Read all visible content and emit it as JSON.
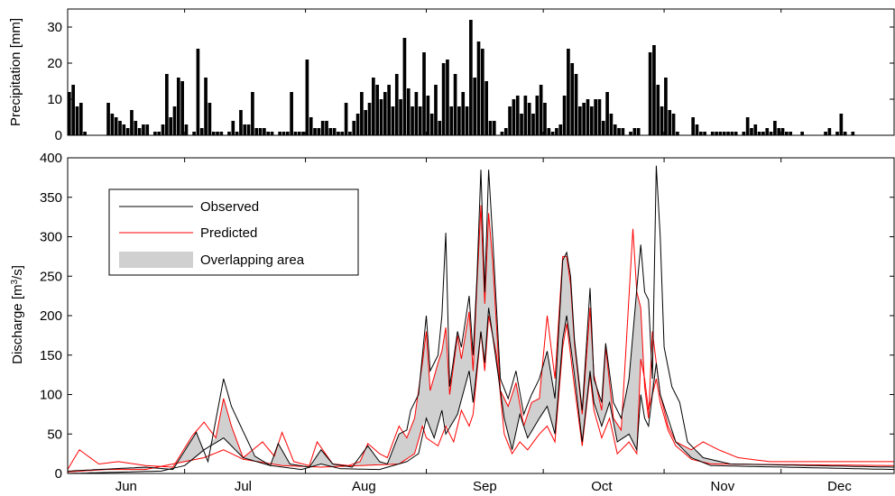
{
  "chart_data": [
    {
      "type": "bar",
      "ylabel": "Precipitation [mm]",
      "ylim": [
        0,
        35
      ],
      "yticks": [
        0,
        10,
        20,
        30
      ],
      "x_start_day": 0,
      "series": [
        {
          "name": "Precipitation",
          "values": [
            12,
            14,
            8,
            9,
            1,
            0,
            0,
            0,
            0,
            0,
            9,
            6,
            5,
            4,
            3,
            2,
            7,
            4,
            2,
            3,
            3,
            0,
            1,
            1,
            3,
            17,
            5,
            8,
            16,
            15,
            3,
            0,
            1,
            24,
            2,
            16,
            9,
            1,
            1,
            1,
            0,
            1,
            4,
            1,
            7,
            3,
            3,
            12,
            2,
            2,
            2,
            1,
            1,
            0,
            1,
            1,
            1,
            12,
            1,
            1,
            1,
            21,
            5,
            2,
            2,
            4,
            4,
            2,
            2,
            1,
            1,
            9,
            1,
            4,
            6,
            12,
            7,
            9,
            16,
            14,
            10,
            12,
            14,
            8,
            17,
            10,
            27,
            13,
            8,
            12,
            8,
            23,
            11,
            6,
            14,
            4,
            20,
            21,
            8,
            17,
            8,
            12,
            8,
            32,
            16,
            26,
            24,
            15,
            4,
            4,
            0,
            1,
            2,
            8,
            10,
            11,
            6,
            11,
            9,
            6,
            11,
            14,
            9,
            2,
            1,
            2,
            3,
            11,
            24,
            20,
            17,
            8,
            9,
            10,
            8,
            10,
            10,
            4,
            12,
            6,
            3,
            2,
            2,
            0,
            1,
            2,
            2,
            0,
            0,
            23,
            25,
            14,
            8,
            16,
            7,
            6,
            1,
            0,
            0,
            0,
            5,
            3,
            1,
            1,
            0,
            1,
            1,
            1,
            1,
            1,
            1,
            1,
            0,
            1,
            5,
            2,
            3,
            1,
            1,
            2,
            1,
            4,
            2,
            2,
            1,
            1,
            0,
            0,
            1,
            0,
            0,
            0,
            0,
            0,
            1,
            2,
            0,
            1,
            6,
            1,
            0,
            1,
            0,
            0,
            0,
            0,
            0,
            0
          ]
        }
      ]
    },
    {
      "type": "line",
      "ylabel": "Discharge [m³/s]",
      "ylim": [
        0,
        400
      ],
      "yticks": [
        0,
        50,
        100,
        150,
        200,
        250,
        300,
        350,
        400
      ],
      "xlim": [
        0,
        212
      ],
      "xtick_labels": [
        "Jun",
        "Jul",
        "Aug",
        "Sep",
        "Oct",
        "Nov",
        "Dec"
      ],
      "xtick_label_days": [
        15,
        45,
        76,
        107,
        137,
        168,
        198
      ],
      "xtick_mark_days": [
        0,
        30,
        61,
        92,
        122,
        153,
        183
      ],
      "legend_position": "top-left",
      "observed_upper": [
        [
          0,
          3
        ],
        [
          20,
          8
        ],
        [
          27,
          5
        ],
        [
          33,
          52
        ],
        [
          36,
          15
        ],
        [
          40,
          120
        ],
        [
          42,
          85
        ],
        [
          48,
          22
        ],
        [
          52,
          10
        ],
        [
          54,
          38
        ],
        [
          57,
          12
        ],
        [
          62,
          8
        ],
        [
          65,
          30
        ],
        [
          68,
          12
        ],
        [
          73,
          8
        ],
        [
          77,
          35
        ],
        [
          80,
          15
        ],
        [
          82,
          12
        ],
        [
          85,
          50
        ],
        [
          87,
          55
        ],
        [
          88,
          80
        ],
        [
          90,
          100
        ],
        [
          92,
          200
        ],
        [
          93,
          130
        ],
        [
          95,
          150
        ],
        [
          96,
          200
        ],
        [
          97,
          305
        ],
        [
          98,
          110
        ],
        [
          100,
          180
        ],
        [
          101,
          160
        ],
        [
          103,
          225
        ],
        [
          104,
          150
        ],
        [
          105,
          250
        ],
        [
          106,
          385
        ],
        [
          107,
          230
        ],
        [
          108,
          385
        ],
        [
          109,
          300
        ],
        [
          111,
          120
        ],
        [
          113,
          95
        ],
        [
          115,
          130
        ],
        [
          117,
          75
        ],
        [
          119,
          100
        ],
        [
          121,
          120
        ],
        [
          123,
          155
        ],
        [
          125,
          95
        ],
        [
          127,
          270
        ],
        [
          128,
          280
        ],
        [
          129,
          250
        ],
        [
          130,
          170
        ],
        [
          132,
          80
        ],
        [
          134,
          235
        ],
        [
          135,
          120
        ],
        [
          137,
          90
        ],
        [
          138,
          165
        ],
        [
          140,
          90
        ],
        [
          142,
          70
        ],
        [
          144,
          120
        ],
        [
          147,
          290
        ],
        [
          148,
          230
        ],
        [
          149,
          220
        ],
        [
          150,
          120
        ],
        [
          151,
          390
        ],
        [
          152,
          300
        ],
        [
          153,
          160
        ],
        [
          155,
          110
        ],
        [
          157,
          90
        ],
        [
          159,
          40
        ],
        [
          163,
          20
        ],
        [
          170,
          12
        ],
        [
          212,
          8
        ]
      ],
      "observed_lower": [
        [
          0,
          0
        ],
        [
          24,
          3
        ],
        [
          30,
          10
        ],
        [
          35,
          30
        ],
        [
          40,
          45
        ],
        [
          45,
          20
        ],
        [
          52,
          10
        ],
        [
          60,
          5
        ],
        [
          65,
          12
        ],
        [
          70,
          6
        ],
        [
          80,
          5
        ],
        [
          87,
          15
        ],
        [
          90,
          25
        ],
        [
          92,
          70
        ],
        [
          94,
          45
        ],
        [
          96,
          80
        ],
        [
          97,
          50
        ],
        [
          100,
          75
        ],
        [
          103,
          130
        ],
        [
          104,
          90
        ],
        [
          106,
          180
        ],
        [
          107,
          140
        ],
        [
          108,
          210
        ],
        [
          110,
          140
        ],
        [
          112,
          70
        ],
        [
          114,
          30
        ],
        [
          116,
          75
        ],
        [
          118,
          45
        ],
        [
          121,
          70
        ],
        [
          123,
          85
        ],
        [
          125,
          50
        ],
        [
          127,
          170
        ],
        [
          128,
          200
        ],
        [
          130,
          125
        ],
        [
          132,
          40
        ],
        [
          134,
          130
        ],
        [
          135,
          90
        ],
        [
          137,
          60
        ],
        [
          139,
          90
        ],
        [
          141,
          40
        ],
        [
          144,
          50
        ],
        [
          146,
          30
        ],
        [
          147,
          100
        ],
        [
          148,
          70
        ],
        [
          149,
          60
        ],
        [
          151,
          140
        ],
        [
          152,
          100
        ],
        [
          154,
          70
        ],
        [
          156,
          40
        ],
        [
          160,
          20
        ],
        [
          165,
          10
        ],
        [
          212,
          5
        ]
      ],
      "predicted_upper": [
        [
          0,
          5
        ],
        [
          3,
          30
        ],
        [
          8,
          12
        ],
        [
          13,
          15
        ],
        [
          20,
          10
        ],
        [
          27,
          8
        ],
        [
          32,
          48
        ],
        [
          35,
          65
        ],
        [
          38,
          45
        ],
        [
          40,
          95
        ],
        [
          42,
          60
        ],
        [
          45,
          20
        ],
        [
          50,
          40
        ],
        [
          53,
          22
        ],
        [
          55,
          52
        ],
        [
          58,
          15
        ],
        [
          62,
          10
        ],
        [
          64,
          40
        ],
        [
          68,
          12
        ],
        [
          72,
          10
        ],
        [
          75,
          15
        ],
        [
          77,
          38
        ],
        [
          80,
          25
        ],
        [
          82,
          20
        ],
        [
          85,
          60
        ],
        [
          87,
          45
        ],
        [
          89,
          70
        ],
        [
          91,
          140
        ],
        [
          92,
          180
        ],
        [
          93,
          105
        ],
        [
          95,
          140
        ],
        [
          96,
          155
        ],
        [
          97,
          185
        ],
        [
          98,
          100
        ],
        [
          100,
          175
        ],
        [
          101,
          145
        ],
        [
          103,
          205
        ],
        [
          104,
          130
        ],
        [
          105,
          240
        ],
        [
          106,
          340
        ],
        [
          107,
          215
        ],
        [
          108,
          330
        ],
        [
          109,
          270
        ],
        [
          111,
          105
        ],
        [
          113,
          85
        ],
        [
          115,
          115
        ],
        [
          117,
          60
        ],
        [
          119,
          90
        ],
        [
          121,
          95
        ],
        [
          123,
          200
        ],
        [
          125,
          120
        ],
        [
          127,
          275
        ],
        [
          128,
          275
        ],
        [
          129,
          240
        ],
        [
          130,
          165
        ],
        [
          132,
          75
        ],
        [
          134,
          210
        ],
        [
          135,
          125
        ],
        [
          137,
          80
        ],
        [
          138,
          160
        ],
        [
          140,
          70
        ],
        [
          142,
          55
        ],
        [
          145,
          310
        ],
        [
          146,
          230
        ],
        [
          147,
          210
        ],
        [
          148,
          110
        ],
        [
          149,
          70
        ],
        [
          150,
          180
        ],
        [
          152,
          100
        ],
        [
          154,
          60
        ],
        [
          156,
          40
        ],
        [
          160,
          30
        ],
        [
          163,
          40
        ],
        [
          167,
          30
        ],
        [
          172,
          20
        ],
        [
          180,
          15
        ],
        [
          212,
          15
        ]
      ],
      "predicted_lower": [
        [
          0,
          2
        ],
        [
          10,
          5
        ],
        [
          20,
          5
        ],
        [
          30,
          15
        ],
        [
          35,
          20
        ],
        [
          40,
          30
        ],
        [
          45,
          18
        ],
        [
          55,
          10
        ],
        [
          65,
          8
        ],
        [
          75,
          10
        ],
        [
          85,
          12
        ],
        [
          89,
          25
        ],
        [
          91,
          60
        ],
        [
          92,
          45
        ],
        [
          95,
          35
        ],
        [
          97,
          60
        ],
        [
          99,
          40
        ],
        [
          101,
          80
        ],
        [
          103,
          60
        ],
        [
          104,
          75
        ],
        [
          106,
          180
        ],
        [
          107,
          130
        ],
        [
          108,
          200
        ],
        [
          110,
          150
        ],
        [
          112,
          50
        ],
        [
          114,
          25
        ],
        [
          116,
          40
        ],
        [
          118,
          30
        ],
        [
          121,
          50
        ],
        [
          123,
          60
        ],
        [
          125,
          40
        ],
        [
          127,
          160
        ],
        [
          128,
          190
        ],
        [
          130,
          110
        ],
        [
          132,
          35
        ],
        [
          134,
          125
        ],
        [
          135,
          80
        ],
        [
          137,
          45
        ],
        [
          139,
          70
        ],
        [
          141,
          25
        ],
        [
          144,
          40
        ],
        [
          146,
          25
        ],
        [
          147,
          145
        ],
        [
          148,
          120
        ],
        [
          149,
          80
        ],
        [
          151,
          120
        ],
        [
          152,
          90
        ],
        [
          154,
          55
        ],
        [
          156,
          35
        ],
        [
          160,
          18
        ],
        [
          165,
          12
        ],
        [
          212,
          10
        ]
      ],
      "series_names": {
        "observed": "Observed",
        "predicted": "Predicted",
        "overlap": "Overlapping area"
      },
      "colors": {
        "observed": "#000000",
        "predicted": "#ff0000",
        "overlap": "#d0d0d0",
        "bars": "#000000"
      }
    }
  ],
  "legend": {
    "observed": "Observed",
    "predicted": "Predicted",
    "overlap": "Overlapping area"
  },
  "axes": {
    "precip_ylabel": "Precipitation [mm]",
    "discharge_ylabel_main": "Discharge [m",
    "discharge_ylabel_sup": "3",
    "discharge_ylabel_end": "/s]"
  }
}
